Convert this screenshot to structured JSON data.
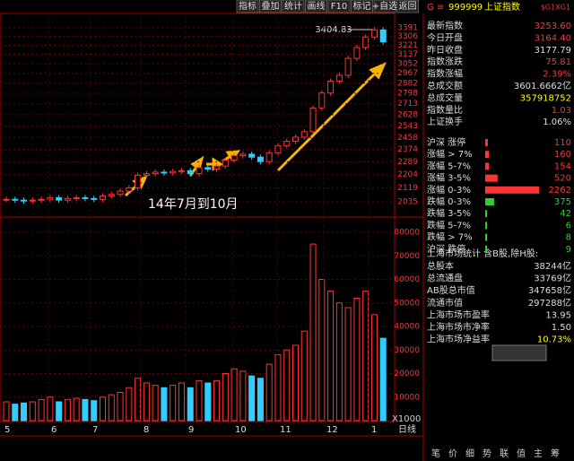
{
  "toolbar": [
    "指标",
    "叠加",
    "统计",
    "画线",
    "F10",
    "标记",
    "+自选",
    "返回"
  ],
  "header": {
    "code_prefix": "G ≡",
    "code": "999999",
    "name": "上证指数",
    "tag": "$G1XG1"
  },
  "quote_rows": [
    {
      "label": "最新指数",
      "value": "3253.60"
    },
    {
      "label": "今日开盘",
      "value": "3164.40"
    },
    {
      "label": "昨日收盘",
      "value": "3177.79"
    },
    {
      "label": "指数涨跌",
      "value": "75.81"
    },
    {
      "label": "指数涨幅",
      "value": "2.39%"
    },
    {
      "label": "总成交额",
      "value": "3601.6662亿"
    },
    {
      "label": "总成交量",
      "value": "357918752"
    },
    {
      "label": "指数量比",
      "value": "1.03"
    },
    {
      "label": "上证换手",
      "value": "1.06%"
    }
  ],
  "breadth_rows": [
    {
      "label": "沪深 涨停",
      "count": 110
    },
    {
      "label": "涨幅 > 7%",
      "count": 160
    },
    {
      "label": "涨幅 5-7%",
      "count": 154
    },
    {
      "label": "涨幅 3-5%",
      "count": 520
    },
    {
      "label": "涨幅 0-3%",
      "count": 2262
    },
    {
      "label": "跌幅 0-3%",
      "count": 375
    },
    {
      "label": "跌幅 3-5%",
      "count": 42
    },
    {
      "label": "跌幅 5-7%",
      "count": 6
    },
    {
      "label": "跌幅 > 7%",
      "count": 8
    },
    {
      "label": "沪深 跌停",
      "count": 9
    }
  ],
  "market_title": "上海市场统计 含B股,除H股:",
  "market_rows": [
    {
      "label": "总股本",
      "value": "38244亿"
    },
    {
      "label": "总流通盘",
      "value": "33769亿"
    },
    {
      "label": "AB股总市值",
      "value": "347658亿"
    },
    {
      "label": "流通市值",
      "value": "297288亿"
    },
    {
      "label": "上海市场市盈率",
      "value": "13.95"
    },
    {
      "label": "上海市场市净率",
      "value": "1.50"
    },
    {
      "label": "上海市场净益率",
      "value": "10.73%"
    }
  ],
  "price_chart": {
    "log_scale": true,
    "ylim": [
      1998,
      3518
    ],
    "yticks": [
      3391,
      3306,
      3221,
      3137,
      3052,
      2967,
      2882,
      2798,
      2713,
      2628,
      2543,
      2458,
      2374,
      2289,
      2204,
      2119,
      2035
    ],
    "values": [
      2050,
      2045,
      2040,
      2045,
      2050,
      2060,
      2045,
      2055,
      2060,
      2055,
      2050,
      2070,
      2080,
      2100,
      2120,
      2200,
      2210,
      2220,
      2215,
      2225,
      2230,
      2210,
      2250,
      2240,
      2260,
      2300,
      2330,
      2340,
      2320,
      2290,
      2350,
      2400,
      2430,
      2460,
      2500,
      2680,
      2800,
      2900,
      2950,
      3100,
      3200,
      3300,
      3370,
      3253.6
    ],
    "peak_label": "3404.83",
    "annotation": "14年7月到10月"
  },
  "volume_chart": {
    "ylim": [
      0,
      80000
    ],
    "yticks": [
      80000,
      70000,
      60000,
      50000,
      40000,
      30000,
      20000,
      10000
    ],
    "unit": "X1000",
    "values": [
      8000,
      7000,
      7500,
      8000,
      9000,
      10000,
      8000,
      9000,
      9500,
      9000,
      8500,
      10000,
      11000,
      12000,
      14000,
      18000,
      16000,
      15000,
      14000,
      15000,
      16000,
      14000,
      17000,
      16000,
      17000,
      20000,
      22000,
      21000,
      19000,
      18000,
      24000,
      28000,
      30000,
      32000,
      38000,
      75000,
      60000,
      55000,
      50000,
      48000,
      52000,
      55000,
      45000,
      35000
    ]
  },
  "date_axis": {
    "labels": [
      "5",
      "6",
      "7",
      "8",
      "9",
      "10",
      "11",
      "12",
      "1"
    ],
    "period": "日线"
  },
  "bottom_tabs": [
    "笔",
    "价",
    "细",
    "势",
    "联",
    "值",
    "主",
    "筹"
  ]
}
